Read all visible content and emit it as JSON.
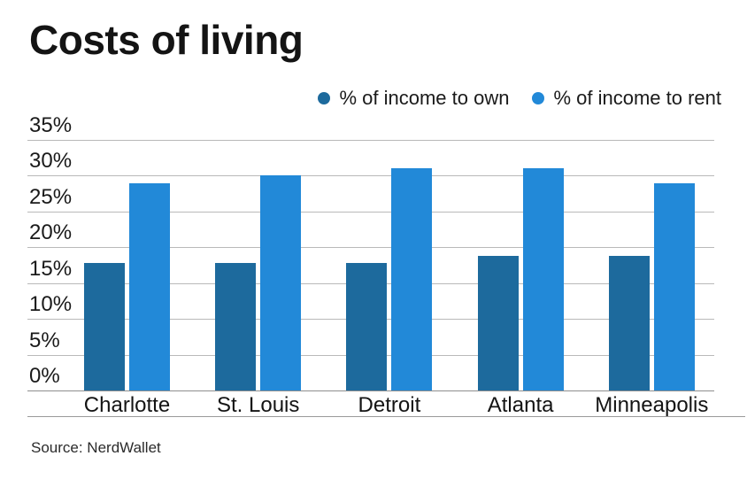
{
  "title": "Costs of living",
  "source": "Source: NerdWallet",
  "legend": [
    {
      "label": "% of income to own",
      "color": "#1d6a9d"
    },
    {
      "label": "% of income to rent",
      "color": "#2289d8"
    }
  ],
  "colors": {
    "own_bar": "#1d6a9d",
    "rent_bar": "#2289d8",
    "gridline": "#b9b9b9",
    "axis_line": "#8e8e8e",
    "text": "#1a1a1a"
  },
  "chart_data": {
    "type": "bar",
    "title": "Costs of living",
    "categories": [
      "Charlotte",
      "St. Louis",
      "Detroit",
      "Atlanta",
      "Minneapolis"
    ],
    "series": [
      {
        "name": "% of income to own",
        "color": "#1d6a9d",
        "values": [
          17.8,
          17.8,
          17.8,
          18.8,
          18.8
        ]
      },
      {
        "name": "% of income to rent",
        "color": "#2289d8",
        "values": [
          28.9,
          30.1,
          31.0,
          31.1,
          28.9
        ]
      }
    ],
    "xlabel": "",
    "ylabel": "",
    "ylim": [
      0,
      35
    ],
    "yticks": [
      "35%",
      "30%",
      "25%",
      "20%",
      "15%",
      "10%",
      "5%",
      "0%"
    ],
    "grid": true,
    "legend_position": "top-right",
    "source": "Source: NerdWallet"
  }
}
